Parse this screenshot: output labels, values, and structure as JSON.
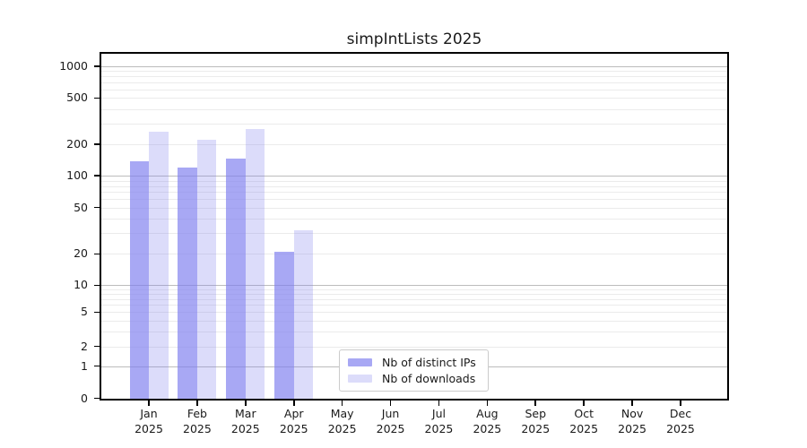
{
  "chart_data": {
    "type": "bar",
    "title": "simpIntLists 2025",
    "categories": [
      "Jan",
      "Feb",
      "Mar",
      "Apr",
      "May",
      "Jun",
      "Jul",
      "Aug",
      "Sep",
      "Oct",
      "Nov",
      "Dec"
    ],
    "x_year_label": "2025",
    "series": [
      {
        "name": "Nb of distinct IPs",
        "color": "#7d7deeab",
        "values": [
          138,
          120,
          145,
          21,
          null,
          null,
          null,
          null,
          null,
          null,
          null,
          null
        ]
      },
      {
        "name": "Nb of downloads",
        "color": "#7d7dee45",
        "values": [
          255,
          220,
          272,
          32,
          null,
          null,
          null,
          null,
          null,
          null,
          null,
          null
        ]
      }
    ],
    "yticks": [
      0,
      1,
      2,
      5,
      10,
      20,
      50,
      100,
      200,
      500,
      1000
    ],
    "ylim": [
      0,
      1290
    ],
    "scale": "symlog",
    "grid": "horizontal major and minor",
    "legend_position": "lower center-left",
    "colors": {
      "major_grid": "#bcbcbc",
      "minor_grid": "#ebebeb",
      "axis": "#000000"
    }
  }
}
